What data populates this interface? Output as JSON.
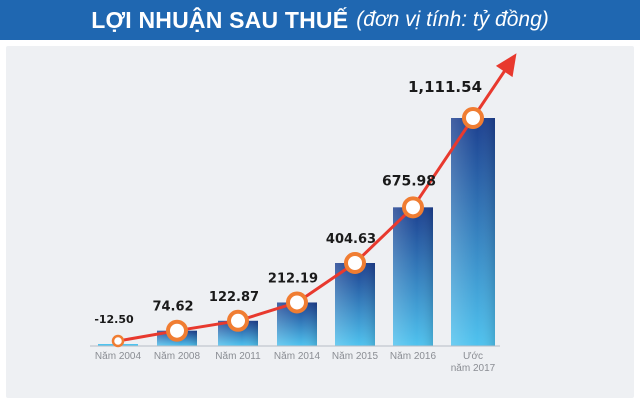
{
  "header": {
    "title": "LỢI NHUẬN SAU THUẾ",
    "subtitle": "(đơn vị tính: tỷ đồng)"
  },
  "colors": {
    "header_bg": "#1f67b1",
    "bar_light": "#4fc3ef",
    "bar_dark": "#1c3f8f",
    "trend_line": "#e8392e",
    "marker_ring": "#f07d32"
  },
  "chart_data": {
    "type": "bar",
    "title": "LỢI NHUẬN SAU THUẾ (đơn vị tính: tỷ đồng)",
    "xlabel": "",
    "ylabel": "",
    "categories": [
      "Năm 2004",
      "Năm 2008",
      "Năm 2011",
      "Năm 2014",
      "Năm 2015",
      "Năm 2016",
      "Ước năm 2017"
    ],
    "values": [
      -12.5,
      74.62,
      122.87,
      212.19,
      404.63,
      675.98,
      1111.54
    ],
    "value_labels": [
      "-12.50",
      "74.62",
      "122.87",
      "212.19",
      "404.63",
      "675.98",
      "1,111.54"
    ],
    "trend_line": true,
    "grid": false,
    "legend": "none"
  }
}
